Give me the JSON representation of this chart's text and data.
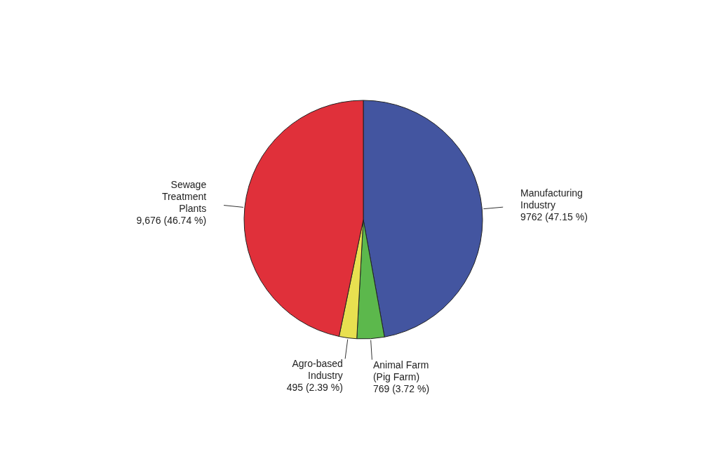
{
  "chart_data": {
    "type": "pie",
    "categories": [
      "Manufacturing Industry",
      "Animal Farm (Pig Farm)",
      "Agro-based Industry",
      "Sewage Treatment Plants"
    ],
    "values": [
      9762,
      769,
      495,
      9676
    ],
    "value_labels": [
      "9762 (47.15 %)",
      "769 (3.72 %)",
      "495 (2.39 %)",
      "9,676 (46.74 %)"
    ],
    "colors": [
      "#4355a0",
      "#5cb84c",
      "#e8e050",
      "#e0303a"
    ]
  }
}
